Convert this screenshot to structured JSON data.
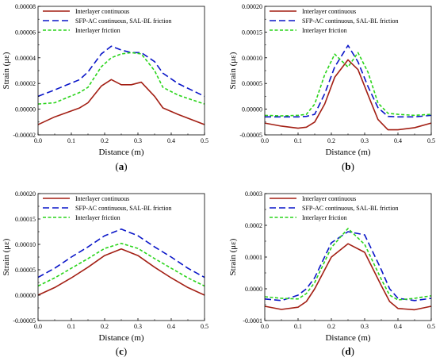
{
  "colors": {
    "series": [
      "#a31f14",
      "#0a16c8",
      "#29d41a"
    ],
    "axis": "#000000",
    "background": "#ffffff"
  },
  "chart_data": [
    {
      "type": "line",
      "caption_letter": "a",
      "xlabel": "Distance (m)",
      "ylabel": "Strain (με)",
      "xlim": [
        0,
        0.5
      ],
      "ylim": [
        -2e-05,
        8e-05
      ],
      "xticks": [
        "0.0",
        "0.1",
        "0.2",
        "0.3",
        "0.4",
        "0.5"
      ],
      "yticks": [
        "-0.00002",
        "0.00000",
        "0.00002",
        "0.00004",
        "0.00006",
        "0.00008"
      ],
      "x": [
        0,
        0.05,
        0.125,
        0.15,
        0.19,
        0.22,
        0.25,
        0.28,
        0.31,
        0.35,
        0.375,
        0.42,
        0.5
      ],
      "series": [
        {
          "name": "Interlayer continuous",
          "style": "solid",
          "values": [
            -1.2e-05,
            -6e-06,
            1e-06,
            5e-06,
            1.8e-05,
            2.3e-05,
            1.9e-05,
            1.9e-05,
            2.1e-05,
            1e-05,
            1e-06,
            -4e-06,
            -1.2e-05
          ]
        },
        {
          "name": "SFP-AC continuous, SAL-BL friction",
          "style": "dash",
          "values": [
            1e-05,
            1.5e-05,
            2.3e-05,
            2.9e-05,
            4.3e-05,
            4.9e-05,
            4.6e-05,
            4.4e-05,
            4.4e-05,
            3.7e-05,
            2.8e-05,
            2e-05,
            1e-05
          ]
        },
        {
          "name": "Interlayer friction",
          "style": "dot",
          "values": [
            4e-06,
            5e-06,
            1.3e-05,
            1.7e-05,
            3.3e-05,
            4e-05,
            4.3e-05,
            4.4e-05,
            4.3e-05,
            3e-05,
            1.7e-05,
            1.1e-05,
            4e-06
          ]
        }
      ]
    },
    {
      "type": "line",
      "caption_letter": "b",
      "xlabel": "Distance (m)",
      "ylabel": "Strain (με)",
      "xlim": [
        0,
        0.5
      ],
      "ylim": [
        -5e-05,
        0.0002
      ],
      "xticks": [
        "0.0",
        "0.1",
        "0.2",
        "0.3",
        "0.4",
        "0.5"
      ],
      "yticks": [
        "-0.00005",
        "0.00000",
        "0.00005",
        "0.00010",
        "0.00015",
        "0.00020"
      ],
      "x": [
        0,
        0.05,
        0.1,
        0.125,
        0.15,
        0.18,
        0.21,
        0.25,
        0.28,
        0.31,
        0.34,
        0.37,
        0.4,
        0.45,
        0.5
      ],
      "series": [
        {
          "name": "Interlayer continuous",
          "style": "solid",
          "values": [
            -2.7e-05,
            -3.3e-05,
            -3.7e-05,
            -3.5e-05,
            -2.5e-05,
            1e-05,
            6.2e-05,
            9.6e-05,
            7.7e-05,
            2.8e-05,
            -2e-05,
            -4e-05,
            -4e-05,
            -3.6e-05,
            -2.7e-05
          ]
        },
        {
          "name": "SFP-AC continuous, SAL-BL friction",
          "style": "dash",
          "values": [
            -1.5e-05,
            -1.5e-05,
            -1.5e-05,
            -1.4e-05,
            -1e-05,
            3e-05,
            8.2e-05,
            0.000124,
            9.2e-05,
            4.4e-05,
            3e-06,
            -1.4e-05,
            -1.5e-05,
            -1.5e-05,
            -1.2e-05
          ]
        },
        {
          "name": "Interlayer friction",
          "style": "dot",
          "values": [
            -1.2e-05,
            -1.3e-05,
            -1.2e-05,
            -1e-05,
            1e-05,
            6.7e-05,
            0.000107,
            8.2e-05,
            0.00011,
            7.2e-05,
            1.2e-05,
            -8e-06,
            -1e-05,
            -1.2e-05,
            -1e-05
          ]
        }
      ]
    },
    {
      "type": "line",
      "caption_letter": "c",
      "xlabel": "Distance (m)",
      "ylabel": "Strain (με)",
      "xlim": [
        0,
        0.5
      ],
      "ylim": [
        -5e-05,
        0.0002
      ],
      "xticks": [
        "0.0",
        "0.1",
        "0.2",
        "0.3",
        "0.4",
        "0.5"
      ],
      "yticks": [
        "-0.00005",
        "0.00000",
        "0.00005",
        "0.00010",
        "0.00015",
        "0.00020"
      ],
      "x": [
        0,
        0.05,
        0.1,
        0.15,
        0.2,
        0.25,
        0.3,
        0.35,
        0.4,
        0.45,
        0.5
      ],
      "series": [
        {
          "name": "Interlayer continuous",
          "style": "solid",
          "values": [
            0.0,
            1.5e-05,
            3.4e-05,
            5.5e-05,
            7.8e-05,
            9.1e-05,
            7.8e-05,
            5.5e-05,
            3.4e-05,
            1.5e-05,
            0.0
          ]
        },
        {
          "name": "SFP-AC continuous, SAL-BL friction",
          "style": "dash",
          "values": [
            3.5e-05,
            5.3e-05,
            7.5e-05,
            9.5e-05,
            0.000117,
            0.00013,
            0.000117,
            9.5e-05,
            7.5e-05,
            5.3e-05,
            3.5e-05
          ]
        },
        {
          "name": "Interlayer friction",
          "style": "dot",
          "values": [
            1.8e-05,
            3.4e-05,
            5.3e-05,
            7.2e-05,
            9.2e-05,
            0.000102,
            9.2e-05,
            7.2e-05,
            5.3e-05,
            3.4e-05,
            1.8e-05
          ]
        }
      ]
    },
    {
      "type": "line",
      "caption_letter": "d",
      "xlabel": "Distance (m)",
      "ylabel": "Strain (με)",
      "xlim": [
        0,
        0.5
      ],
      "ylim": [
        -0.0001,
        0.0003
      ],
      "xticks": [
        "0.0",
        "0.1",
        "0.2",
        "0.3",
        "0.4",
        "0.5"
      ],
      "yticks": [
        "-0.0001",
        "0.0000",
        "0.0001",
        "0.0002",
        "0.0003"
      ],
      "x": [
        0,
        0.05,
        0.1,
        0.125,
        0.15,
        0.2,
        0.25,
        0.3,
        0.35,
        0.375,
        0.4,
        0.45,
        0.5
      ],
      "series": [
        {
          "name": "Interlayer continuous",
          "style": "solid",
          "values": [
            -5.5e-05,
            -6.5e-05,
            -5.8e-05,
            -4e-05,
            0.0,
            0.0001,
            0.000142,
            0.000115,
            1e-05,
            -4e-05,
            -6.2e-05,
            -6.6e-05,
            -5.5e-05
          ]
        },
        {
          "name": "SFP-AC continuous, SAL-BL friction",
          "style": "dash",
          "values": [
            -3.2e-05,
            -3.7e-05,
            -2e-05,
            0.0,
            3.5e-05,
            0.000145,
            0.00018,
            0.00017,
            6e-05,
            0.0,
            -3e-05,
            -3.7e-05,
            -3e-05
          ]
        },
        {
          "name": "Interlayer friction",
          "style": "dot",
          "values": [
            -2.5e-05,
            -3e-05,
            -3.2e-05,
            -1.5e-05,
            2e-05,
            0.00013,
            0.00019,
            0.00014,
            3e-05,
            -2e-05,
            -3.5e-05,
            -3e-05,
            -2.2e-05
          ]
        }
      ]
    }
  ]
}
